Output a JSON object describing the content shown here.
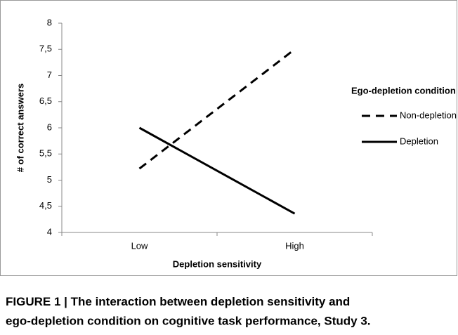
{
  "chart_data": {
    "type": "line",
    "categories": [
      "Low",
      "High"
    ],
    "series": [
      {
        "name": "Non-depletion",
        "color": "#000000",
        "line_style": "dashed",
        "values": [
          5.22,
          7.5
        ]
      },
      {
        "name": "Depletion",
        "color": "#000000",
        "line_style": "solid",
        "values": [
          6.0,
          4.36
        ]
      }
    ],
    "ylim": [
      4,
      8
    ],
    "yticks": [
      4,
      {
        "value": 4.5,
        "label": "4,5"
      },
      5,
      {
        "value": 5.5,
        "label": "5,5"
      },
      6,
      {
        "value": 6.5,
        "label": "6,5"
      },
      7,
      {
        "value": 7.5,
        "label": "7,5"
      },
      8
    ],
    "ylabel": "# of correct answers",
    "xlabel": "Depletion sensitivity",
    "legend_title": "Ego-depletion condition",
    "legend_position": "right",
    "grid": false,
    "caption_label": "FIGURE 1 |",
    "caption_lines": [
      "The interaction between depletion sensitivity and",
      "ego-depletion condition on cognitive task performance, Study 3."
    ]
  }
}
